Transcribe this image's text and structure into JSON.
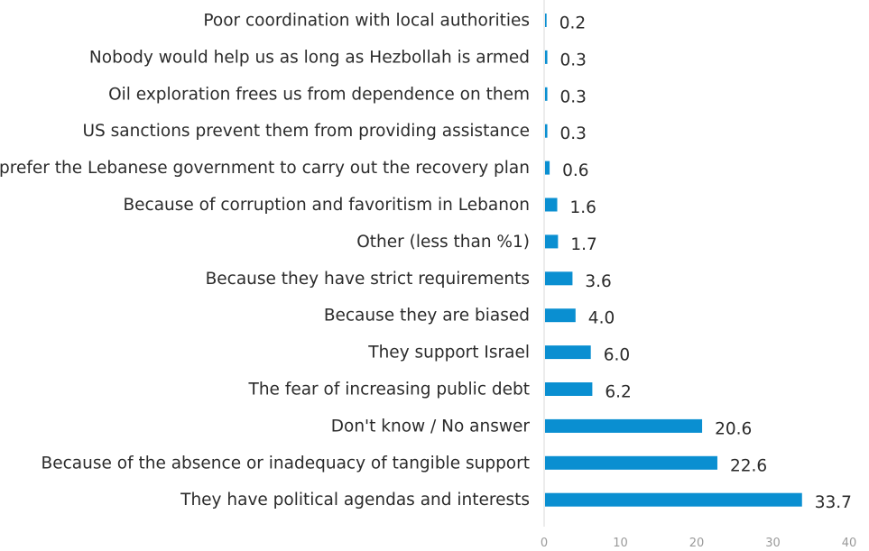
{
  "chart_data": {
    "type": "bar",
    "orientation": "horizontal",
    "categories": [
      "Poor coordination with local authorities",
      "Nobody would help us as long as Hezbollah is armed",
      "Oil exploration frees us from dependence on them",
      "US sanctions prevent them from providing assistance",
      "I prefer the Lebanese government to carry out the recovery plan",
      "Because of corruption and favoritism in Lebanon",
      "Other (less than %1)",
      "Because they have strict requirements",
      "Because they are biased",
      "They support Israel",
      "The fear of increasing public debt",
      "Don't know / No answer",
      "Because of the absence or inadequacy of tangible support",
      "They have political agendas and interests"
    ],
    "values": [
      0.2,
      0.3,
      0.3,
      0.3,
      0.6,
      1.6,
      1.7,
      3.6,
      4.0,
      6.0,
      6.2,
      20.6,
      22.6,
      33.7
    ],
    "value_labels": [
      "0.2",
      "0.3",
      "0.3",
      "0.3",
      "0.6",
      "1.6",
      "1.7",
      "3.6",
      "4.0",
      "6.0",
      "6.2",
      "20.6",
      "22.6",
      "33.7"
    ],
    "xlim": [
      0,
      40
    ],
    "xticks": [
      "0",
      "10",
      "20",
      "30",
      "40"
    ],
    "title": "",
    "xlabel": "",
    "ylabel": "",
    "grid": false,
    "bar_color": "#0a8fd1",
    "axis_color": "#d9d9d9"
  }
}
